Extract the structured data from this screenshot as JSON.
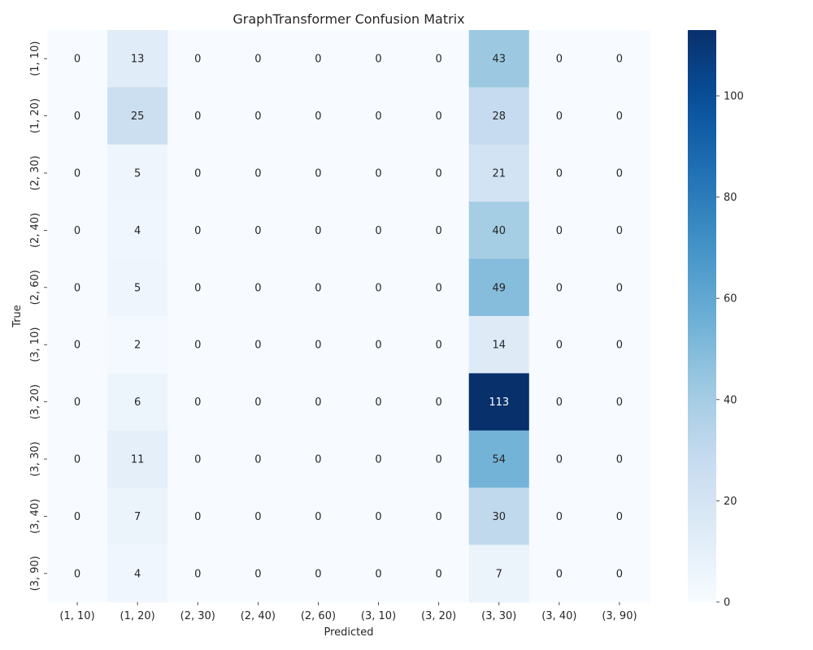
{
  "chart_data": {
    "type": "heatmap",
    "title": "GraphTransformer Confusion Matrix",
    "xlabel": "Predicted",
    "ylabel": "True",
    "x_categories": [
      "(1, 10)",
      "(1, 20)",
      "(2, 30)",
      "(2, 40)",
      "(2, 60)",
      "(3, 10)",
      "(3, 20)",
      "(3, 30)",
      "(3, 40)",
      "(3, 90)"
    ],
    "y_categories": [
      "(1, 10)",
      "(1, 20)",
      "(2, 30)",
      "(2, 40)",
      "(2, 60)",
      "(3, 10)",
      "(3, 20)",
      "(3, 30)",
      "(3, 40)",
      "(3, 90)"
    ],
    "values": [
      [
        0,
        13,
        0,
        0,
        0,
        0,
        0,
        43,
        0,
        0
      ],
      [
        0,
        25,
        0,
        0,
        0,
        0,
        0,
        28,
        0,
        0
      ],
      [
        0,
        5,
        0,
        0,
        0,
        0,
        0,
        21,
        0,
        0
      ],
      [
        0,
        4,
        0,
        0,
        0,
        0,
        0,
        40,
        0,
        0
      ],
      [
        0,
        5,
        0,
        0,
        0,
        0,
        0,
        49,
        0,
        0
      ],
      [
        0,
        2,
        0,
        0,
        0,
        0,
        0,
        14,
        0,
        0
      ],
      [
        0,
        6,
        0,
        0,
        0,
        0,
        0,
        113,
        0,
        0
      ],
      [
        0,
        11,
        0,
        0,
        0,
        0,
        0,
        54,
        0,
        0
      ],
      [
        0,
        7,
        0,
        0,
        0,
        0,
        0,
        30,
        0,
        0
      ],
      [
        0,
        4,
        0,
        0,
        0,
        0,
        0,
        7,
        0,
        0
      ]
    ],
    "colormap": "Blues",
    "colorbar": {
      "min": 0,
      "max": 113,
      "ticks": [
        0,
        20,
        40,
        60,
        80,
        100
      ]
    },
    "grid": false,
    "legend": "colorbar-right"
  }
}
